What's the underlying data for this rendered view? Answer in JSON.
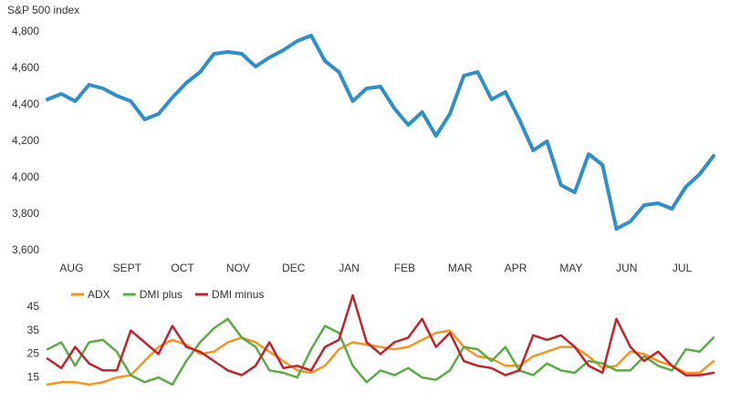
{
  "chart_data": [
    {
      "type": "line",
      "title": "S&P 500 index",
      "color": "#2e8fca",
      "categories": [
        null,
        null,
        "AUG",
        null,
        null,
        null,
        "SEPT",
        null,
        null,
        null,
        "OCT",
        null,
        null,
        null,
        "NOV",
        null,
        null,
        null,
        "DEC",
        null,
        null,
        null,
        "JAN",
        null,
        null,
        null,
        "FEB",
        null,
        null,
        null,
        "MAR",
        null,
        null,
        null,
        "APR",
        null,
        null,
        null,
        "MAY",
        null,
        null,
        null,
        "JUN",
        null,
        null,
        null,
        "JUL",
        null,
        null
      ],
      "values": [
        4430,
        4460,
        4420,
        4510,
        4490,
        4450,
        4420,
        4320,
        4350,
        4440,
        4520,
        4580,
        4680,
        4690,
        4680,
        4610,
        4660,
        4700,
        4750,
        4780,
        4640,
        4580,
        4420,
        4490,
        4500,
        4380,
        4290,
        4360,
        4230,
        4350,
        4560,
        4580,
        4430,
        4470,
        4320,
        4150,
        4200,
        3960,
        3920,
        4130,
        4070,
        3720,
        3760,
        3850,
        3860,
        3830,
        3950,
        4020,
        4120
      ],
      "ylim": [
        3600,
        4800
      ],
      "yticks": [
        {
          "value": 3600,
          "label": "3,600"
        },
        {
          "value": 3800,
          "label": "3,800"
        },
        {
          "value": 4000,
          "label": "4,000"
        },
        {
          "value": 4200,
          "label": "4,200"
        },
        {
          "value": 4400,
          "label": "4,400"
        },
        {
          "value": 4600,
          "label": "4,600"
        },
        {
          "value": 4800,
          "label": "4,800"
        }
      ],
      "grid": false
    },
    {
      "type": "line",
      "legend": "top",
      "series": [
        {
          "name": "ADX",
          "color": "#f7941d",
          "values": [
            12,
            13,
            13,
            12,
            13,
            15,
            16,
            22,
            28,
            31,
            29,
            25,
            26,
            30,
            32,
            30,
            26,
            22,
            18,
            17,
            20,
            27,
            30,
            29,
            28,
            27,
            28,
            31,
            34,
            35,
            28,
            24,
            23,
            20,
            20,
            24,
            26,
            28,
            28,
            24,
            19,
            20,
            26,
            25,
            22,
            20,
            17,
            17,
            22
          ]
        },
        {
          "name": "DMI plus",
          "color": "#5aac44",
          "values": [
            27,
            30,
            20,
            30,
            31,
            26,
            16,
            13,
            15,
            12,
            22,
            30,
            36,
            40,
            32,
            28,
            18,
            17,
            15,
            27,
            37,
            34,
            20,
            13,
            18,
            16,
            19,
            15,
            14,
            18,
            28,
            27,
            22,
            28,
            18,
            16,
            21,
            18,
            17,
            22,
            21,
            18,
            18,
            24,
            20,
            18,
            27,
            26,
            32
          ]
        },
        {
          "name": "DMI minus",
          "color": "#c1232b",
          "values": [
            23,
            19,
            28,
            21,
            18,
            18,
            35,
            30,
            25,
            37,
            28,
            26,
            22,
            18,
            16,
            20,
            30,
            19,
            20,
            18,
            28,
            31,
            50,
            30,
            25,
            30,
            32,
            40,
            28,
            34,
            22,
            20,
            19,
            16,
            18,
            33,
            31,
            33,
            28,
            20,
            17,
            40,
            28,
            22,
            26,
            20,
            16,
            16,
            17
          ]
        }
      ],
      "ylim": [
        10,
        50
      ],
      "yticks": [
        15,
        25,
        35,
        45
      ],
      "grid": false
    }
  ]
}
